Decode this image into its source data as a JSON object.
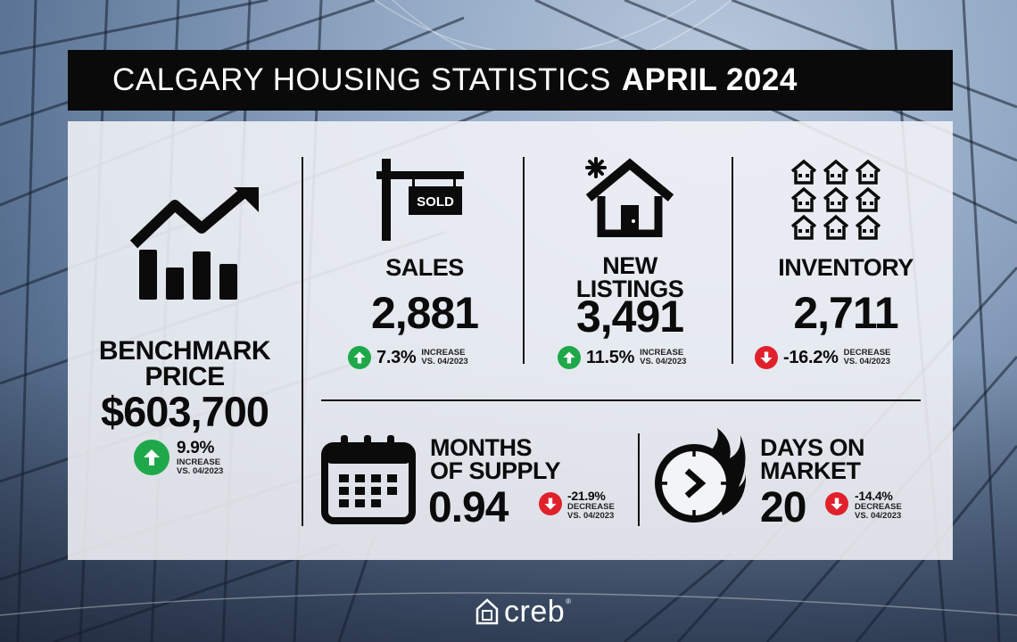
{
  "title": {
    "regular": "CALGARY HOUSING STATISTICS",
    "bold": "APRIL 2024"
  },
  "benchmark": {
    "label_line1": "BENCHMARK",
    "label_line2": "PRICE",
    "value": "$603,700",
    "change": "9.9%",
    "direction": "up",
    "note_line1": "INCREASE",
    "note_line2": "VS. 04/2023",
    "icon": "rising-bar-chart-icon"
  },
  "sales": {
    "label": "SALES",
    "value": "2,881",
    "change": "7.3%",
    "direction": "up",
    "note_line1": "INCREASE",
    "note_line2": "VS. 04/2023",
    "icon": "sold-sign-icon",
    "sign_text": "SOLD"
  },
  "new_listings": {
    "label_line1": "NEW",
    "label_line2": "LISTINGS",
    "value": "3,491",
    "change": "11.5%",
    "direction": "up",
    "note_line1": "INCREASE",
    "note_line2": "VS. 04/2023",
    "icon": "new-house-icon"
  },
  "inventory": {
    "label": "INVENTORY",
    "value": "2,711",
    "change": "-16.2%",
    "direction": "down",
    "note_line1": "DECREASE",
    "note_line2": "VS. 04/2023",
    "icon": "houses-grid-icon"
  },
  "months_of_supply": {
    "label_line1": "MONTHS",
    "label_line2": "OF SUPPLY",
    "value": "0.94",
    "change": "-21.9%",
    "direction": "down",
    "note_line1": "DECREASE",
    "note_line2": "VS. 04/2023",
    "icon": "calendar-icon"
  },
  "days_on_market": {
    "label_line1": "DAYS ON",
    "label_line2": "MARKET",
    "value": "20",
    "change": "-14.4%",
    "direction": "down",
    "note_line1": "DECREASE",
    "note_line2": "VS. 04/2023",
    "icon": "fast-clock-icon"
  },
  "logo": {
    "word": "creb",
    "mark": "®"
  },
  "colors": {
    "up": "#1ea84a",
    "down": "#e0212b",
    "title_bar": "#0a0a0a"
  }
}
